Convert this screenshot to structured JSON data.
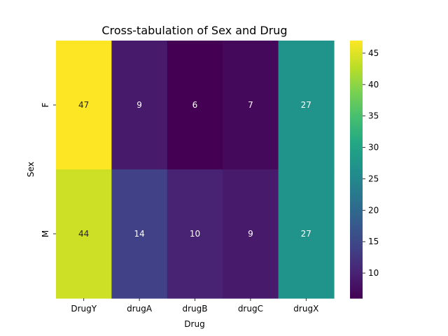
{
  "chart_data": {
    "type": "heatmap",
    "title": "Cross-tabulation of Sex and Drug",
    "xlabel": "Drug",
    "ylabel": "Sex",
    "x_categories": [
      "DrugY",
      "drugA",
      "drugB",
      "drugC",
      "drugX"
    ],
    "y_categories": [
      "F",
      "M"
    ],
    "values": [
      [
        47,
        9,
        6,
        7,
        27
      ],
      [
        44,
        14,
        10,
        9,
        27
      ]
    ],
    "colormap": "viridis",
    "color_range": [
      6,
      47
    ],
    "colorbar_ticks": [
      10,
      15,
      20,
      25,
      30,
      35,
      40,
      45
    ],
    "annotations": true,
    "grid": false
  }
}
